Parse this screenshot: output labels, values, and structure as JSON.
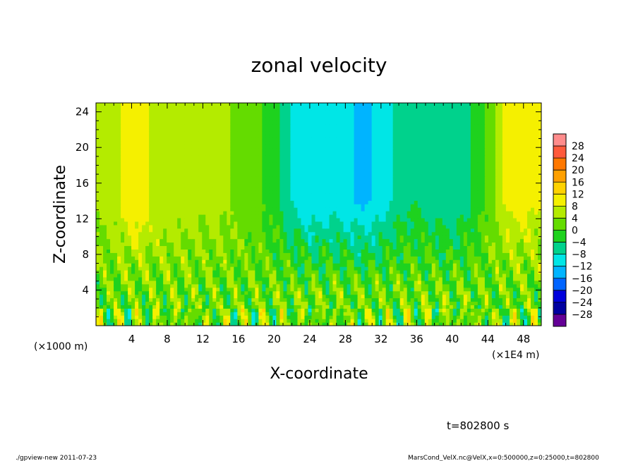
{
  "chart_data": {
    "type": "heatmap",
    "title": "zonal velocity",
    "xlabel": "X-coordinate",
    "ylabel": "Z-coordinate",
    "x_unit_left": "(×1000 m)",
    "x_unit_right": "(×1E4 m)",
    "xlim": [
      0,
      50
    ],
    "ylim": [
      0,
      25
    ],
    "x_ticks": [
      4,
      8,
      12,
      16,
      20,
      24,
      28,
      32,
      36,
      40,
      44,
      48
    ],
    "y_ticks": [
      4,
      8,
      12,
      16,
      20,
      24
    ],
    "x_tick_labels": [
      "4",
      "8",
      "12",
      "16",
      "20",
      "24",
      "28",
      "32",
      "36",
      "40",
      "44",
      "48"
    ],
    "y_tick_labels": [
      "4",
      "8",
      "12",
      "16",
      "20",
      "24"
    ],
    "colorbar": {
      "levels": [
        28,
        24,
        20,
        16,
        12,
        8,
        4,
        0,
        -4,
        -8,
        -12,
        -16,
        -20,
        -24,
        -28
      ],
      "level_labels": [
        "28",
        "24",
        "20",
        "16",
        "12",
        "8",
        "4",
        "0",
        "−4",
        "−8",
        "−12",
        "−16",
        "−20",
        "−24",
        "−28"
      ],
      "colors": [
        "#ff8c8c",
        "#ff5a3c",
        "#ff7800",
        "#ffa000",
        "#ffd200",
        "#f5f000",
        "#b4eb00",
        "#64dc00",
        "#1ed21e",
        "#00d28c",
        "#00e6e6",
        "#00b4ff",
        "#0064ff",
        "#0000dc",
        "#0000a0",
        "#640096"
      ]
    },
    "x_profile": {
      "x": [
        0,
        2,
        4,
        5,
        6,
        8,
        10,
        12,
        14,
        16,
        18,
        20,
        22,
        24,
        26,
        28,
        30,
        32,
        34,
        36,
        38,
        40,
        42,
        44,
        46,
        48,
        50
      ],
      "upper_velocity": [
        5,
        6,
        11,
        12,
        8,
        7,
        6,
        5,
        5,
        3,
        1,
        -2,
        -8,
        -12,
        -10,
        -11,
        -13,
        -11,
        -6,
        -4,
        -6,
        -8,
        -4,
        1,
        9,
        10,
        8
      ]
    }
  },
  "annotation": {
    "time": "t=802800 s"
  },
  "footer": {
    "left": "./gpview-new  2011-07-23",
    "right": "MarsCond_VelX.nc@VelX,x=0:500000,z=0:25000,t=802800"
  }
}
